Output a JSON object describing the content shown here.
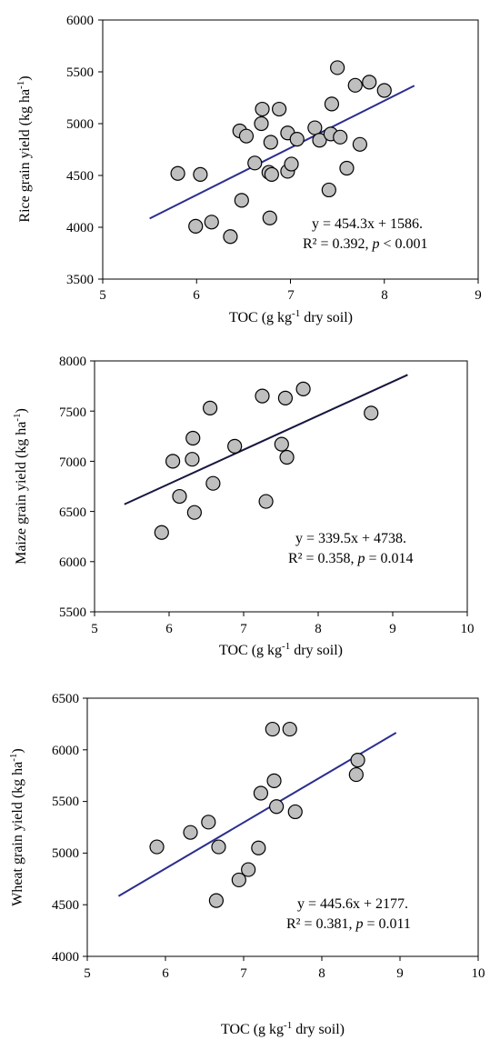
{
  "chart_data": [
    {
      "type": "scatter",
      "xlabel": "TOC (g kg-1 dry soil)",
      "ylabel": "Rice grain yield (kg ha-1)",
      "xlim": [
        5,
        9
      ],
      "ylim": [
        3500,
        6000
      ],
      "xticks": [
        5,
        6,
        7,
        8,
        9
      ],
      "yticks": [
        3500,
        4000,
        4500,
        5000,
        5500,
        6000
      ],
      "xtick_labels": [
        "5",
        "6",
        "7",
        "8",
        "9"
      ],
      "ytick_labels": [
        "3500",
        "4000",
        "4500",
        "5000",
        "5500",
        "6000"
      ],
      "points": [
        [
          5.8,
          4520
        ],
        [
          5.99,
          4010
        ],
        [
          6.04,
          4510
        ],
        [
          6.16,
          4050
        ],
        [
          6.36,
          3910
        ],
        [
          6.46,
          4930
        ],
        [
          6.48,
          4260
        ],
        [
          6.53,
          4880
        ],
        [
          6.62,
          4620
        ],
        [
          6.69,
          5000
        ],
        [
          6.7,
          5140
        ],
        [
          6.77,
          4530
        ],
        [
          6.78,
          4090
        ],
        [
          6.79,
          4820
        ],
        [
          6.8,
          4510
        ],
        [
          6.88,
          5140
        ],
        [
          6.97,
          4910
        ],
        [
          6.97,
          4540
        ],
        [
          7.01,
          4610
        ],
        [
          7.07,
          4850
        ],
        [
          7.26,
          4960
        ],
        [
          7.31,
          4840
        ],
        [
          7.41,
          4360
        ],
        [
          7.43,
          4900
        ],
        [
          7.44,
          5190
        ],
        [
          7.5,
          5540
        ],
        [
          7.53,
          4870
        ],
        [
          7.6,
          4570
        ],
        [
          7.69,
          5370
        ],
        [
          7.74,
          4800
        ],
        [
          7.84,
          5400
        ],
        [
          8.0,
          5320
        ]
      ],
      "trendline": {
        "x": [
          5.5,
          8.32
        ],
        "y": [
          4084.7,
          5366.0
        ],
        "color": "#2b2e8f"
      },
      "equation": "y = 454.3x + 1586.",
      "stats_prefix": "R² = 0.392, ",
      "stats_p_label": "p",
      "stats_suffix": " < 0.001"
    },
    {
      "type": "scatter",
      "xlabel": "TOC (g kg-1 dry soil)",
      "ylabel": "Maize grain yield (kg ha-1)",
      "xlim": [
        5,
        10
      ],
      "ylim": [
        5500,
        8000
      ],
      "xticks": [
        5,
        6,
        7,
        8,
        9,
        10
      ],
      "yticks": [
        5500,
        6000,
        6500,
        7000,
        7500,
        8000
      ],
      "xtick_labels": [
        "5",
        "6",
        "7",
        "8",
        "9",
        "10"
      ],
      "ytick_labels": [
        "5500",
        "6000",
        "6500",
        "7000",
        "7500",
        "8000"
      ],
      "points": [
        [
          5.9,
          6290
        ],
        [
          6.05,
          7000
        ],
        [
          6.14,
          6650
        ],
        [
          6.31,
          7020
        ],
        [
          6.32,
          7230
        ],
        [
          6.34,
          6490
        ],
        [
          6.55,
          7530
        ],
        [
          6.59,
          6780
        ],
        [
          6.88,
          7150
        ],
        [
          7.25,
          7650
        ],
        [
          7.3,
          6600
        ],
        [
          7.51,
          7170
        ],
        [
          7.56,
          7630
        ],
        [
          7.58,
          7040
        ],
        [
          7.8,
          7720
        ],
        [
          8.71,
          7480
        ]
      ],
      "trendline": {
        "x": [
          5.4,
          9.2
        ],
        "y": [
          6571.3,
          7861.4
        ],
        "color": "#16163f"
      },
      "equation": "y = 339.5x + 4738.",
      "stats_prefix": "R² = 0.358, ",
      "stats_p_label": "p",
      "stats_suffix": " = 0.014"
    },
    {
      "type": "scatter",
      "xlabel": "TOC (g kg-1 dry soil)",
      "ylabel": "Wheat grain yield (kg ha-1)",
      "xlim": [
        5,
        10
      ],
      "ylim": [
        4000,
        6500
      ],
      "xticks": [
        5,
        6,
        7,
        8,
        9,
        10
      ],
      "yticks": [
        4000,
        4500,
        5000,
        5500,
        6000,
        6500
      ],
      "xtick_labels": [
        "5",
        "6",
        "7",
        "8",
        "9",
        "10"
      ],
      "ytick_labels": [
        "4000",
        "4500",
        "5000",
        "5500",
        "6000",
        "6500"
      ],
      "points": [
        [
          5.89,
          5060
        ],
        [
          6.32,
          5200
        ],
        [
          6.55,
          5300
        ],
        [
          6.65,
          4540
        ],
        [
          6.68,
          5060
        ],
        [
          6.94,
          4740
        ],
        [
          7.06,
          4840
        ],
        [
          7.19,
          5050
        ],
        [
          7.22,
          5580
        ],
        [
          7.37,
          6200
        ],
        [
          7.39,
          5700
        ],
        [
          7.42,
          5450
        ],
        [
          7.59,
          6200
        ],
        [
          7.66,
          5400
        ],
        [
          8.44,
          5760
        ],
        [
          8.46,
          5900
        ]
      ],
      "trendline": {
        "x": [
          5.4,
          8.95
        ],
        "y": [
          4583.2,
          6165.1
        ],
        "color": "#2b2e8f"
      },
      "equation": "y = 445.6x + 2177.",
      "stats_prefix": "R² = 0.381, ",
      "stats_p_label": "p",
      "stats_suffix": " = 0.011"
    }
  ],
  "labels": {
    "xlabel_main": "TOC (g kg",
    "xlabel_sup": "-1",
    "xlabel_tail": " dry soil)",
    "ylabel_rice_main": "Rice grain yield (kg ha",
    "ylabel_maize_main": "Maize grain yield (kg ha",
    "ylabel_wheat_main": "Wheat grain yield (kg ha",
    "ylabel_sup": "-1",
    "ylabel_tail": ")"
  },
  "colors": {
    "marker_fill": "#bfbfbf",
    "marker_stroke": "#000000",
    "axis": "#000000"
  }
}
